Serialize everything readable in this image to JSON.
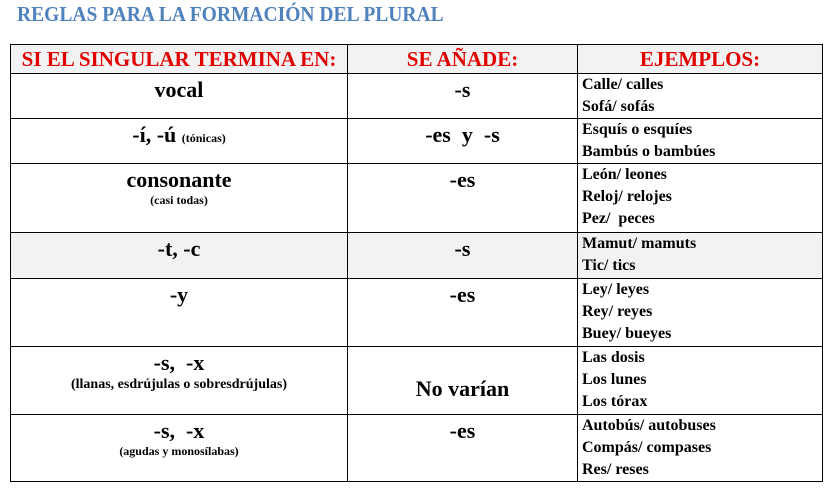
{
  "title": "REGLAS PARA LA FORMACIÓN DEL PLURAL",
  "headers": [
    "SI EL SINGULAR TERMINA EN:",
    "SE AÑADE:",
    "EJEMPLOS:"
  ],
  "rows": [
    {
      "ending": "vocal",
      "note": "",
      "add": "-s",
      "examples": [
        "Calle/ calles",
        "Sofá/ sofás"
      ]
    },
    {
      "ending": "-í, -ú",
      "note": "(tónicas)",
      "add": "-es  y  -s",
      "examples": [
        "Esquís o esquíes",
        "Bambús o bambúes"
      ]
    },
    {
      "ending": "consonante",
      "note": "(casi todas)",
      "add": "-es",
      "examples": [
        "León/ leones",
        "Reloj/ relojes",
        "Pez/  peces"
      ]
    },
    {
      "ending": "-t, -c",
      "note": "",
      "add": "-s",
      "examples": [
        "Mamut/ mamuts",
        "Tic/ tics"
      ]
    },
    {
      "ending": "-y",
      "note": "",
      "add": "-es",
      "examples": [
        "Ley/ leyes",
        "Rey/ reyes",
        "Buey/ bueyes"
      ]
    },
    {
      "ending": "-s,  -x",
      "note": "(llanas, esdrújulas o sobresdrújulas)",
      "add": "No varían",
      "examples": [
        "Las dosis",
        "Los lunes",
        "Los tórax"
      ]
    },
    {
      "ending": "-s,  -x",
      "note": "(agudas y monosílabas)",
      "add": "-es",
      "examples": [
        "Autobús/ autobuses",
        "Compás/ compases",
        "Res/ reses"
      ]
    }
  ]
}
